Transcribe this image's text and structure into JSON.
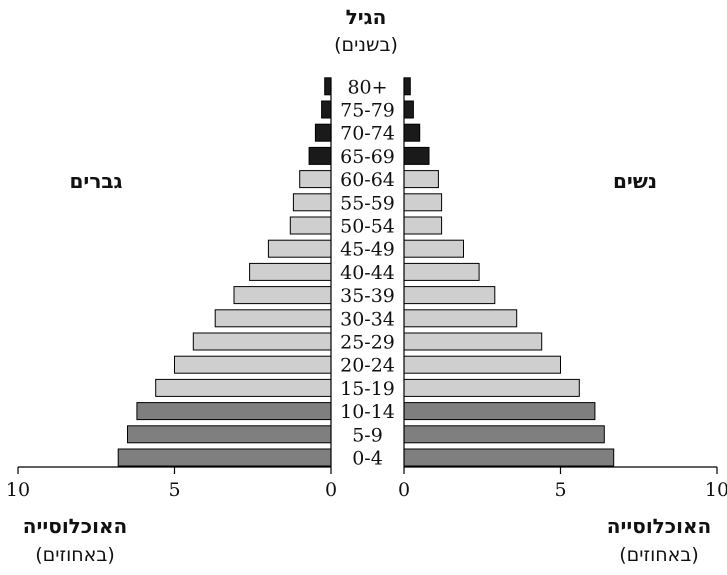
{
  "chart_data": {
    "type": "bar",
    "title": "הגיל",
    "subtitle": "(בשנים)",
    "left_group_label": "גברים",
    "right_group_label": "נשים",
    "xlabel_left": "האוכלוסייה",
    "xlabel_left_unit": "(באחוזים)",
    "xlabel_right": "האוכלוסייה",
    "xlabel_right_unit": "(באחוזים)",
    "categories": [
      "0-4",
      "5-9",
      "10-14",
      "15-19",
      "20-24",
      "25-29",
      "30-34",
      "35-39",
      "40-44",
      "45-49",
      "50-54",
      "55-59",
      "60-64",
      "65-69",
      "70-74",
      "75-79",
      "80+"
    ],
    "series": [
      {
        "name": "גברים",
        "values": [
          6.8,
          6.5,
          6.2,
          5.6,
          5.0,
          4.4,
          3.7,
          3.1,
          2.6,
          2.0,
          1.3,
          1.2,
          1.0,
          0.7,
          0.5,
          0.3,
          0.2
        ]
      },
      {
        "name": "נשים",
        "values": [
          6.7,
          6.4,
          6.1,
          5.6,
          5.0,
          4.4,
          3.6,
          2.9,
          2.4,
          1.9,
          1.2,
          1.2,
          1.1,
          0.8,
          0.5,
          0.3,
          0.2
        ]
      }
    ],
    "bar_group_colors": {
      "dark_gray": "#7f7f7f",
      "light_gray": "#cfcfcf",
      "black": "#1a1a1a"
    },
    "color_groups": [
      "dark",
      "dark",
      "dark",
      "light",
      "light",
      "light",
      "light",
      "light",
      "light",
      "light",
      "light",
      "light",
      "light",
      "black",
      "black",
      "black",
      "black"
    ],
    "xlim": [
      0,
      10
    ],
    "x_ticks": [
      "0",
      "5",
      "10"
    ],
    "grid": false
  }
}
